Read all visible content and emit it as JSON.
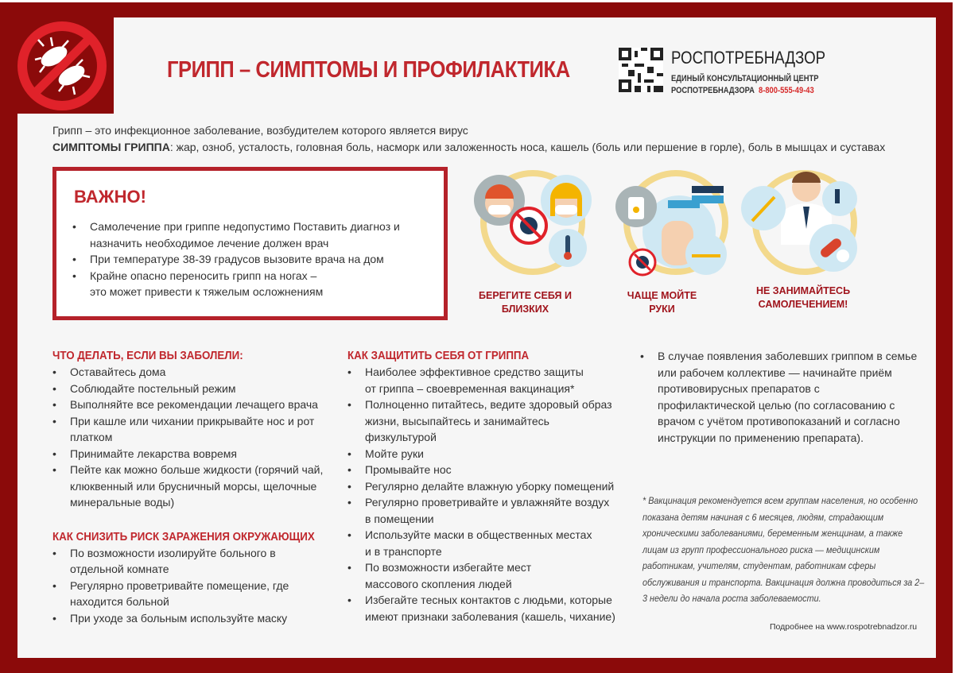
{
  "header": {
    "title": "ГРИПП – СИМПТОМЫ И ПРОФИЛАКТИКА",
    "org_name": "РОСПОТРЕБНАДЗОР",
    "org_line1": "ЕДИНЫЙ КОНСУЛЬТАЦИОННЫЙ ЦЕНТР",
    "org_line2": "РОСПОТРЕБНАДЗОРА",
    "phone": "8-800-555-49-43",
    "logo_icon": "no-virus-icon",
    "qr_icon": "qr-code-icon"
  },
  "intro": {
    "line1": "Грипп – это инфекционное заболевание, возбудителем которого является вирус",
    "symptoms_label": "СИМПТОМЫ ГРИППА",
    "symptoms_text": ": жар, озноб, усталость, головная боль, насморк   или заложенность носа, кашель (боль или першение в горле), боль в мышцах и суставах"
  },
  "important": {
    "title": "ВАЖНО!",
    "items": [
      "Самолечение при гриппе недопустимо Поставить диагноз и назначить необходимое лечение должен врач",
      "При температуре 38-39 градусов вызовите врача на дом",
      "Крайне опасно переносить грипп на ногах – это может привести к тяжелым осложнениям"
    ]
  },
  "illustrations": [
    {
      "caption": "БЕРЕГИТЕ СЕБЯ И БЛИЗКИХ",
      "icon": "family-masks-icon"
    },
    {
      "caption": "ЧАЩЕ МОЙТЕ РУКИ",
      "icon": "hand-washing-icon"
    },
    {
      "caption": "НЕ ЗАНИМАЙТЕСЬ САМОЛЕЧЕНИЕМ!",
      "icon": "doctor-icon"
    }
  ],
  "sick": {
    "title": "ЧТО ДЕЛАТЬ, ЕСЛИ ВЫ ЗАБОЛЕЛИ:",
    "items": [
      "Оставайтесь дома",
      "Соблюдайте постельный режим",
      "Выполняйте все рекомендации лечащего врача",
      "При кашле или чихании прикрывайте нос и рот платком",
      "Принимайте лекарства вовремя",
      "Пейте как можно больше жидкости (горячий чай, клюквенный или брусничный морсы, щелочные минеральные воды)"
    ]
  },
  "risk": {
    "title": "КАК СНИЗИТЬ РИСК ЗАРАЖЕНИЯ ОКРУЖАЮЩИХ",
    "items": [
      "По возможности изолируйте больного в отдельной комнате",
      "Регулярно проветривайте помещение, где находится больной",
      "При уходе за больным используйте маску"
    ]
  },
  "protect": {
    "title": "КАК ЗАЩИТИТЬ СЕБЯ ОТ ГРИППА",
    "items": [
      "Наиболее эффективное средство защиты от гриппа – своевременная вакцинация*",
      "Полноценно питайтесь, ведите здоровый образ жизни, высыпайтесь и занимайтесь физкультурой",
      "Мойте руки",
      "Промывайте нос",
      "Регулярно делайте влажную уборку помещений",
      "Регулярно проветривайте и увлажняйте воздух в помещении",
      "Используйте маски в общественных местах и в транспорте",
      "По возможности избегайте мест массового скопления людей",
      "Избегайте тесных контактов с людьми, которые имеют признаки заболевания (кашель, чихание)"
    ]
  },
  "family": {
    "items": [
      "В случае появления заболевших гриппом в семье или рабочем коллективе — начинайте приём противовирусных препаратов с профилактической целью (по согласованию с врачом с учётом противопоказаний и согласно инструкции по применению препарата)."
    ]
  },
  "footnote": "* Вакцинация рекомендуется всем группам населения, но особенно показана детям начиная с 6 месяцев, людям, страдающим хроническими заболеваниями, беременным женщинам, а также лицам из групп профессионального риска — медицинским работникам, учителям, студентам, работникам сферы обслуживания и транспорта. Вакцинация должна проводиться за 2–3 недели до начала роста заболеваемости.",
  "more_info": "Подробнее на www.rospotrebnadzor.ru",
  "colors": {
    "frame": "#8b0a0a",
    "accent": "#c0272d",
    "paper": "#f6f6f6"
  }
}
